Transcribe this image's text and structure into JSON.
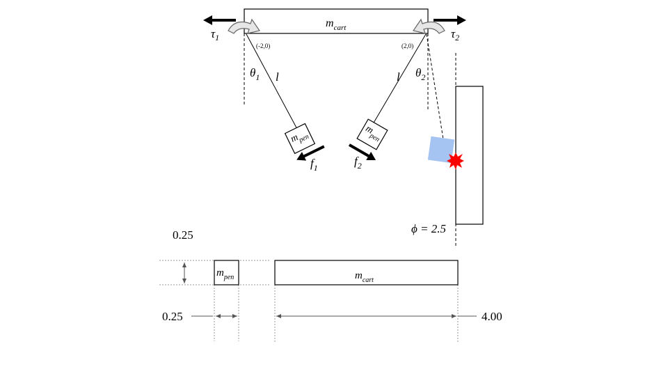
{
  "diagram": {
    "cart_label": {
      "base": "m",
      "sub": "cart"
    },
    "pendulum_label": {
      "base": "m",
      "sub": "pen"
    },
    "torques": [
      {
        "base": "τ",
        "sub": "1"
      },
      {
        "base": "τ",
        "sub": "2"
      }
    ],
    "anchors": [
      {
        "text": "(-2,0)"
      },
      {
        "text": "(2,0)"
      }
    ],
    "angles": [
      {
        "base": "θ",
        "sub": "1"
      },
      {
        "base": "θ",
        "sub": "2"
      }
    ],
    "rod_label": "l",
    "forces": [
      {
        "base": "f",
        "sub": "1"
      },
      {
        "base": "f",
        "sub": "2"
      }
    ],
    "wall_annotation": "ϕ = 2.5",
    "wall_phi": 2.5,
    "dimensions": {
      "pen_height": "0.25",
      "pen_width": "0.25",
      "cart_width": "4.00"
    }
  },
  "colors": {
    "line": "#000000",
    "contact_block": "#a6c4f2",
    "collision_star": "#ff0000",
    "bracket_fill": "#e6e6e6",
    "bracket_stroke": "#666666",
    "dim_line": "#999999"
  }
}
